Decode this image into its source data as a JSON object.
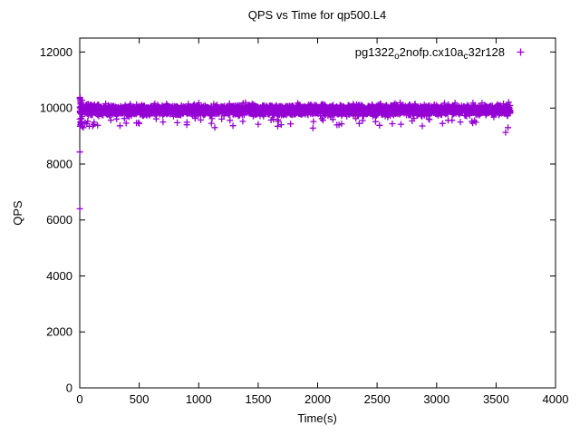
{
  "chart_data": {
    "type": "scatter",
    "title": "QPS vs Time for qp500.L4",
    "xlabel": "Time(s)",
    "ylabel": "QPS",
    "xlim": [
      0,
      4000
    ],
    "ylim": [
      0,
      12500
    ],
    "xticks": [
      0,
      500,
      1000,
      1500,
      2000,
      2500,
      3000,
      3500,
      4000
    ],
    "yticks": [
      0,
      2000,
      4000,
      6000,
      8000,
      10000,
      12000
    ],
    "grid": false,
    "legend_position": "top-right-inside",
    "point_color": "#9400D3",
    "marker": "plus",
    "series": [
      {
        "name": "pg1322_o2nofp.cx10a_c32r128",
        "label_parts": [
          {
            "text": "pg1322",
            "sub": false
          },
          {
            "text": "o",
            "sub": true
          },
          {
            "text": "2nofp.cx10a",
            "sub": false
          },
          {
            "text": "c",
            "sub": true
          },
          {
            "text": "32r128",
            "sub": false
          }
        ],
        "color": "#9400D3",
        "band": {
          "t_start": 1,
          "t_end": 3620,
          "step": 1,
          "mean_qps": 9930,
          "std_qps": 85,
          "dip_probability": 0.013,
          "early_t_cutoff": 400,
          "early_dip_probability": 0.03,
          "dip_qps_min": 9250,
          "dip_qps_max": 9630
        },
        "start_burst": {
          "t_min": 0,
          "t_max": 25,
          "count": 16,
          "qps_min": 9400,
          "qps_max": 10380
        },
        "outliers": [
          [
            1,
            8430
          ],
          [
            1,
            6400
          ],
          [
            2,
            10380
          ],
          [
            4,
            10300
          ],
          [
            3,
            10220
          ],
          [
            6,
            10150
          ],
          [
            5,
            9500
          ],
          [
            7,
            9400
          ],
          [
            3,
            9350
          ],
          [
            9,
            9450
          ],
          [
            12,
            9520
          ],
          [
            20,
            9350
          ],
          [
            30,
            9300
          ],
          [
            45,
            9480
          ],
          [
            60,
            9440
          ],
          [
            80,
            9350
          ],
          [
            120,
            9490
          ],
          [
            150,
            9380
          ],
          [
            500,
            9450
          ],
          [
            700,
            9500
          ],
          [
            900,
            9400
          ],
          [
            1135,
            9300
          ],
          [
            1288,
            9370
          ],
          [
            1500,
            9420
          ],
          [
            1665,
            9350
          ],
          [
            1960,
            9280
          ],
          [
            2180,
            9400
          ],
          [
            2350,
            9450
          ],
          [
            2520,
            9380
          ],
          [
            2700,
            9420
          ],
          [
            2880,
            9360
          ],
          [
            3050,
            9450
          ],
          [
            3200,
            9500
          ],
          [
            3330,
            9490
          ],
          [
            3580,
            9130
          ],
          [
            3600,
            9300
          ]
        ],
        "seed": 7
      }
    ]
  }
}
